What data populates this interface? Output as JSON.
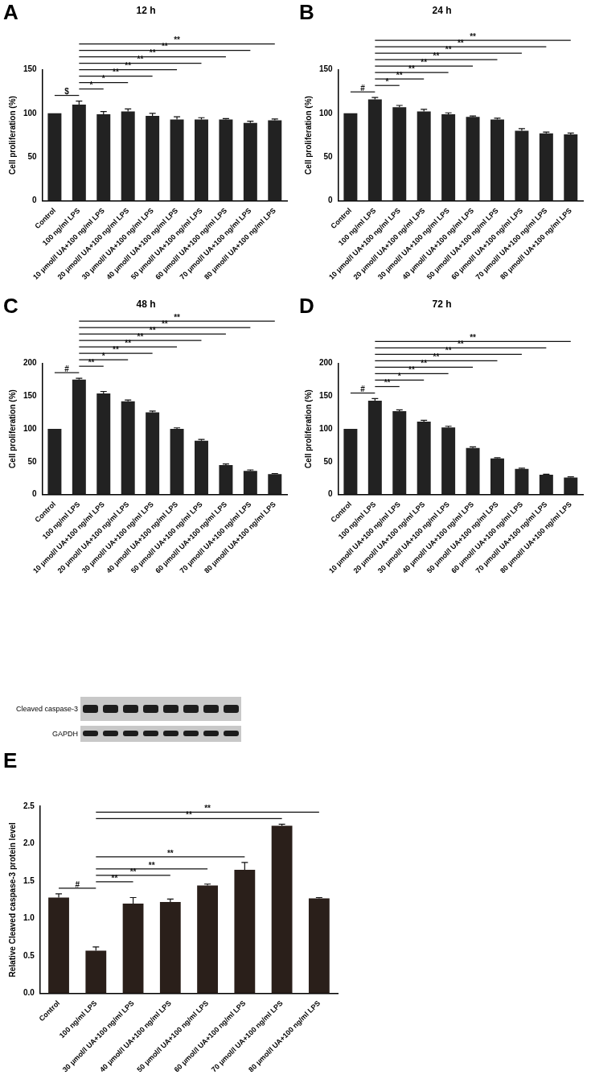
{
  "chart_data": [
    {
      "panel": "A",
      "type": "bar",
      "title": "12 h",
      "y_label": "Cell proliferation (%)",
      "color": "#222222",
      "grid": false,
      "categories": [
        "Control",
        "100 ng/ml LPS",
        "10 μmol/l UA+100 ng/ml LPS",
        "20 μmol/l UA+100 ng/ml LPS",
        "30 μmol/l UA+100 ng/ml LPS",
        "40 μmol/l UA+100 ng/ml LPS",
        "50 μmol/l UA+100 ng/ml LPS",
        "60 μmol/l UA+100 ng/ml LPS",
        "70 μmol/l UA+100 ng/ml LPS",
        "80 μmol/l UA+100 ng/ml LPS"
      ],
      "values": [
        100,
        110,
        99,
        102,
        97,
        93,
        93,
        93,
        89,
        92
      ],
      "errors": [
        0,
        4,
        3,
        3,
        3,
        3,
        2,
        1,
        2,
        1.5
      ],
      "ylim": [
        0,
        150
      ],
      "yticks": [
        0,
        50,
        100,
        150
      ],
      "comparisons": [
        {
          "from": "Control",
          "to": "100 ng/ml LPS",
          "label": "$"
        },
        {
          "from": "100 ng/ml LPS",
          "to": "10 μmol/l UA+100 ng/ml LPS",
          "label": "*"
        },
        {
          "from": "100 ng/ml LPS",
          "to": "20 μmol/l UA+100 ng/ml LPS",
          "label": "*"
        },
        {
          "from": "100 ng/ml LPS",
          "to": "30 μmol/l UA+100 ng/ml LPS",
          "label": "**"
        },
        {
          "from": "100 ng/ml LPS",
          "to": "40 μmol/l UA+100 ng/ml LPS",
          "label": "**"
        },
        {
          "from": "100 ng/ml LPS",
          "to": "50 μmol/l UA+100 ng/ml LPS",
          "label": "**"
        },
        {
          "from": "100 ng/ml LPS",
          "to": "60 μmol/l UA+100 ng/ml LPS",
          "label": "**"
        },
        {
          "from": "100 ng/ml LPS",
          "to": "70 μmol/l UA+100 ng/ml LPS",
          "label": "**"
        },
        {
          "from": "100 ng/ml LPS",
          "to": "80 μmol/l UA+100 ng/ml LPS",
          "label": "**"
        }
      ]
    },
    {
      "panel": "B",
      "type": "bar",
      "title": "24 h",
      "y_label": "Cell proliferation (%)",
      "color": "#222222",
      "grid": false,
      "categories": [
        "Control",
        "100 ng/ml LPS",
        "10 μmol/l UA+100 ng/ml LPS",
        "20 μmol/l UA+100 ng/ml LPS",
        "30 μmol/l UA+100 ng/ml LPS",
        "40 μmol/l UA+100 ng/ml LPS",
        "50 μmol/l UA+100 ng/ml LPS",
        "60 μmol/l UA+100 ng/ml LPS",
        "70 μmol/l UA+100 ng/ml LPS",
        "80 μmol/l UA+100 ng/ml LPS"
      ],
      "values": [
        100,
        116,
        107,
        102,
        99,
        96,
        93,
        80,
        77,
        76
      ],
      "errors": [
        0,
        2,
        2,
        2.5,
        1.5,
        1,
        1.5,
        2.5,
        1.5,
        1.5
      ],
      "ylim": [
        0,
        150
      ],
      "yticks": [
        0,
        50,
        100,
        150
      ],
      "comparisons": [
        {
          "from": "Control",
          "to": "100 ng/ml LPS",
          "label": "#"
        },
        {
          "from": "100 ng/ml LPS",
          "to": "10 μmol/l UA+100 ng/ml LPS",
          "label": "*"
        },
        {
          "from": "100 ng/ml LPS",
          "to": "20 μmol/l UA+100 ng/ml LPS",
          "label": "**"
        },
        {
          "from": "100 ng/ml LPS",
          "to": "30 μmol/l UA+100 ng/ml LPS",
          "label": "**"
        },
        {
          "from": "100 ng/ml LPS",
          "to": "40 μmol/l UA+100 ng/ml LPS",
          "label": "**"
        },
        {
          "from": "100 ng/ml LPS",
          "to": "50 μmol/l UA+100 ng/ml LPS",
          "label": "**"
        },
        {
          "from": "100 ng/ml LPS",
          "to": "60 μmol/l UA+100 ng/ml LPS",
          "label": "**"
        },
        {
          "from": "100 ng/ml LPS",
          "to": "70 μmol/l UA+100 ng/ml LPS",
          "label": "**"
        },
        {
          "from": "100 ng/ml LPS",
          "to": "80 μmol/l UA+100 ng/ml LPS",
          "label": "**"
        }
      ]
    },
    {
      "panel": "C",
      "type": "bar",
      "title": "48 h",
      "y_label": "Cell proliferation (%)",
      "color": "#222222",
      "grid": false,
      "categories": [
        "Control",
        "100 ng/ml LPS",
        "10 μmol/l UA+100 ng/ml LPS",
        "20 μmol/l UA+100 ng/ml LPS",
        "30 μmol/l UA+100 ng/ml LPS",
        "40 μmol/l UA+100 ng/ml LPS",
        "50 μmol/l UA+100 ng/ml LPS",
        "60 μmol/l UA+100 ng/ml LPS",
        "70 μmol/l UA+100 ng/ml LPS",
        "80 μmol/l UA+100 ng/ml LPS"
      ],
      "values": [
        100,
        175,
        154,
        142,
        125,
        100,
        82,
        45,
        36,
        31
      ],
      "errors": [
        0,
        2,
        3,
        2,
        2,
        1.5,
        2,
        1.5,
        1.5,
        1
      ],
      "ylim": [
        0,
        200
      ],
      "yticks": [
        0,
        50,
        100,
        150,
        200
      ],
      "comparisons": [
        {
          "from": "Control",
          "to": "100 ng/ml LPS",
          "label": "#"
        },
        {
          "from": "100 ng/ml LPS",
          "to": "10 μmol/l UA+100 ng/ml LPS",
          "label": "**"
        },
        {
          "from": "100 ng/ml LPS",
          "to": "20 μmol/l UA+100 ng/ml LPS",
          "label": "*"
        },
        {
          "from": "100 ng/ml LPS",
          "to": "30 μmol/l UA+100 ng/ml LPS",
          "label": "**"
        },
        {
          "from": "100 ng/ml LPS",
          "to": "40 μmol/l UA+100 ng/ml LPS",
          "label": "**"
        },
        {
          "from": "100 ng/ml LPS",
          "to": "50 μmol/l UA+100 ng/ml LPS",
          "label": "**"
        },
        {
          "from": "100 ng/ml LPS",
          "to": "60 μmol/l UA+100 ng/ml LPS",
          "label": "**"
        },
        {
          "from": "100 ng/ml LPS",
          "to": "70 μmol/l UA+100 ng/ml LPS",
          "label": "**"
        },
        {
          "from": "100 ng/ml LPS",
          "to": "80 μmol/l UA+100 ng/ml LPS",
          "label": "**"
        }
      ]
    },
    {
      "panel": "D",
      "type": "bar",
      "title": "72 h",
      "y_label": "Cell proliferation (%)",
      "color": "#222222",
      "grid": false,
      "categories": [
        "Control",
        "100 ng/ml LPS",
        "10 μmol/l UA+100 ng/ml LPS",
        "20 μmol/l UA+100 ng/ml LPS",
        "30 μmol/l UA+100 ng/ml LPS",
        "40 μmol/l UA+100 ng/ml LPS",
        "50 μmol/l UA+100 ng/ml LPS",
        "60 μmol/l UA+100 ng/ml LPS",
        "70 μmol/l UA+100 ng/ml LPS",
        "80 μmol/l UA+100 ng/ml LPS"
      ],
      "values": [
        100,
        143,
        127,
        111,
        102,
        71,
        55,
        39,
        30,
        26
      ],
      "errors": [
        0,
        3,
        2,
        2,
        2,
        1.5,
        1,
        1,
        1,
        1
      ],
      "ylim": [
        0,
        200
      ],
      "yticks": [
        0,
        50,
        100,
        150,
        200
      ],
      "comparisons": [
        {
          "from": "Control",
          "to": "100 ng/ml LPS",
          "label": "#"
        },
        {
          "from": "100 ng/ml LPS",
          "to": "10 μmol/l UA+100 ng/ml LPS",
          "label": "**"
        },
        {
          "from": "100 ng/ml LPS",
          "to": "20 μmol/l UA+100 ng/ml LPS",
          "label": "*"
        },
        {
          "from": "100 ng/ml LPS",
          "to": "30 μmol/l UA+100 ng/ml LPS",
          "label": "**"
        },
        {
          "from": "100 ng/ml LPS",
          "to": "40 μmol/l UA+100 ng/ml LPS",
          "label": "**"
        },
        {
          "from": "100 ng/ml LPS",
          "to": "50 μmol/l UA+100 ng/ml LPS",
          "label": "**"
        },
        {
          "from": "100 ng/ml LPS",
          "to": "60 μmol/l UA+100 ng/ml LPS",
          "label": "**"
        },
        {
          "from": "100 ng/ml LPS",
          "to": "70 μmol/l UA+100 ng/ml LPS",
          "label": "**"
        },
        {
          "from": "100 ng/ml LPS",
          "to": "80 μmol/l UA+100 ng/ml LPS",
          "label": "**"
        }
      ]
    },
    {
      "panel": "E",
      "type": "bar",
      "y_label": "Relative Cleaved caspase-3 protein level",
      "color": "#2a1f1a",
      "grid": false,
      "blot_rows": [
        "Cleaved caspase-3",
        "GAPDH"
      ],
      "categories": [
        "Control",
        "100 ng/ml LPS",
        "30 μmol/l UA+100 ng/ml LPS",
        "40 μmol/l UA+100 ng/ml LPS",
        "50 μmol/l UA+100 ng/ml LPS",
        "60 μmol/l UA+100 ng/ml LPS",
        "70 μmol/l UA+100 ng/ml LPS",
        "80 μmol/l UA+100 ng/ml LPS"
      ],
      "values": [
        1.28,
        0.57,
        1.2,
        1.22,
        1.44,
        1.65,
        2.24,
        1.27
      ],
      "errors": [
        0.05,
        0.05,
        0.08,
        0.04,
        0.02,
        0.1,
        0.02,
        0.01
      ],
      "ylim": [
        0,
        2.5
      ],
      "yticks": [
        {
          "value": 0,
          "label": "0.0"
        },
        {
          "value": 0.5,
          "label": "0.5"
        },
        {
          "value": 1,
          "label": "1.0"
        },
        {
          "value": 1.5,
          "label": "1.5"
        },
        {
          "value": 2,
          "label": "2.0"
        },
        {
          "value": 2.5,
          "label": "2.5"
        }
      ],
      "comparisons": [
        {
          "from": "Control",
          "to": "100 ng/ml LPS",
          "label": "#"
        },
        {
          "from": "100 ng/ml LPS",
          "to": "30 μmol/l UA+100 ng/ml LPS",
          "label": "**"
        },
        {
          "from": "100 ng/ml LPS",
          "to": "40 μmol/l UA+100 ng/ml LPS",
          "label": "**"
        },
        {
          "from": "100 ng/ml LPS",
          "to": "50 μmol/l UA+100 ng/ml LPS",
          "label": "**"
        },
        {
          "from": "100 ng/ml LPS",
          "to": "60 μmol/l UA+100 ng/ml LPS",
          "label": "**"
        },
        {
          "from": "100 ng/ml LPS",
          "to": "70 μmol/l UA+100 ng/ml LPS",
          "label": "**"
        },
        {
          "from": "100 ng/ml LPS",
          "to": "80 μmol/l UA+100 ng/ml LPS",
          "label": "**"
        }
      ]
    }
  ]
}
